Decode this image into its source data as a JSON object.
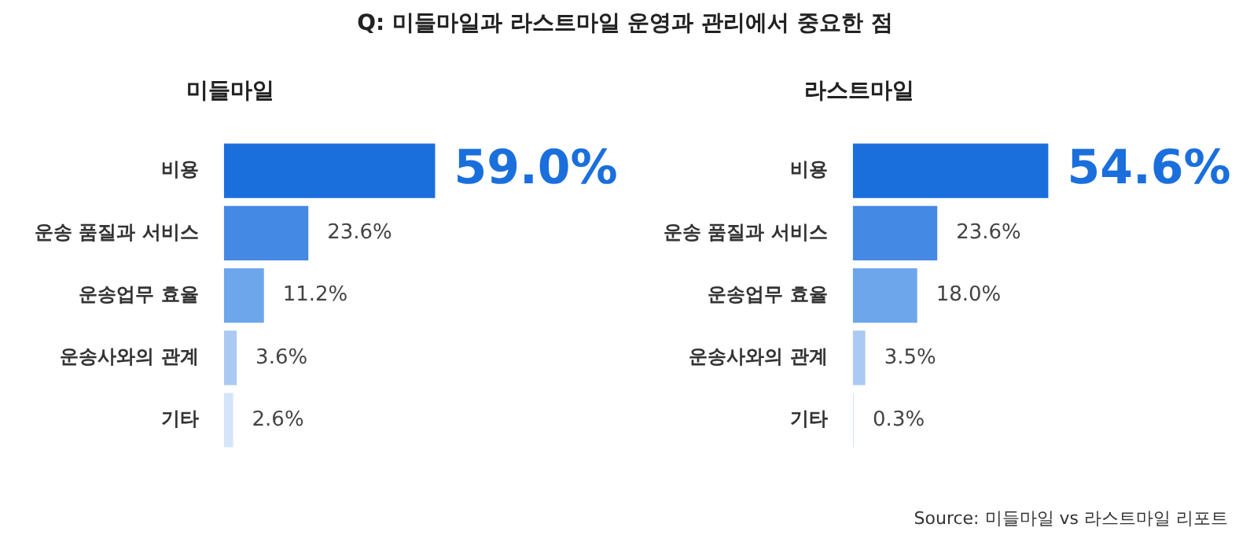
{
  "chart_data": [
    {
      "type": "other",
      "title": "Q: 미들마일과 라스트마일 운영과 관리에서 중요한 점",
      "annotations": [
        "Source: 미들마일 vs 라스트마일 리포트"
      ]
    },
    {
      "type": "bar",
      "orientation": "horizontal",
      "title": "미들마일",
      "categories": [
        "비용",
        "운송 품질과 서비스",
        "운송업무 효율",
        "운송사와의 관계",
        "기타"
      ],
      "values": [
        59.0,
        23.6,
        11.2,
        3.6,
        2.6
      ],
      "value_labels": [
        "59.0%",
        "23.6%",
        "11.2%",
        "3.6%",
        "2.6%"
      ],
      "colors": [
        "#1a6fdc",
        "#4489e3",
        "#6ea6ec",
        "#aac9f3",
        "#d4e4f9"
      ],
      "tick_labels": "y"
    },
    {
      "type": "bar",
      "orientation": "horizontal",
      "title": "라스트마일",
      "categories": [
        "비용",
        "운송 품질과 서비스",
        "운송업무 효율",
        "운송사와의 관계",
        "기타"
      ],
      "values": [
        54.6,
        23.6,
        18.0,
        3.5,
        0.3
      ],
      "value_labels": [
        "54.6%",
        "23.6%",
        "18.0%",
        "3.5%",
        "0.3%"
      ],
      "colors": [
        "#1a6fdc",
        "#4489e3",
        "#6ea6ec",
        "#aac9f3",
        "#d4e4f9"
      ],
      "tick_labels": "y"
    }
  ]
}
